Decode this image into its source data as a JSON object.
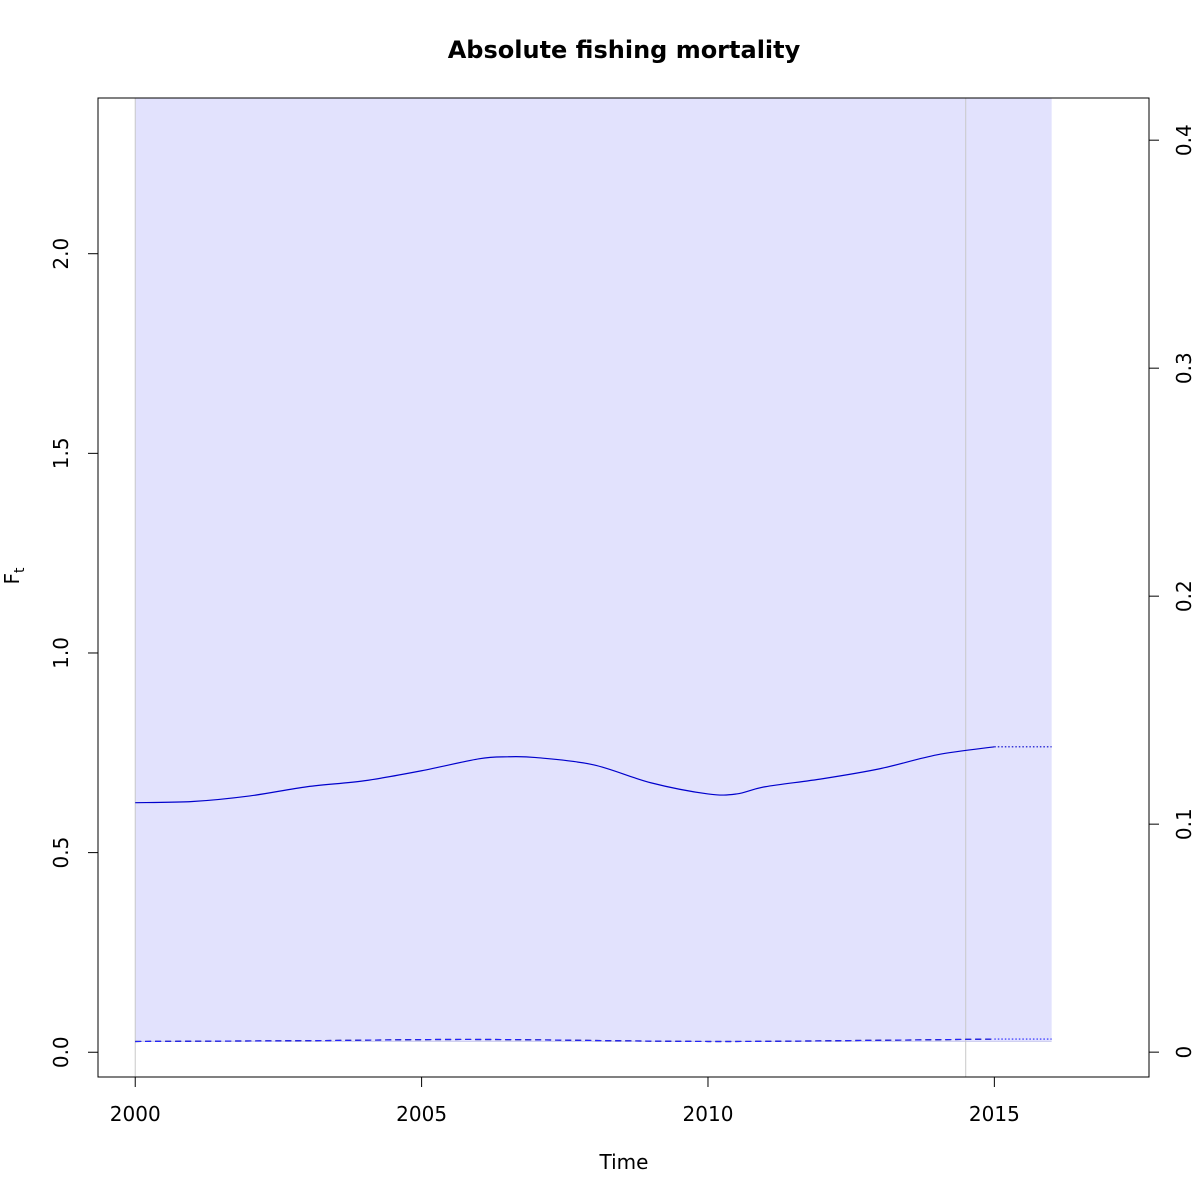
{
  "chart_data": {
    "type": "line",
    "title": "Absolute fishing mortality",
    "xlabel": "Time",
    "ylabel_main": "F",
    "ylabel_sub": "t",
    "xlim": [
      1999.35,
      2017.7
    ],
    "ylim": [
      -0.062,
      2.39
    ],
    "y2lim": [
      -0.0109,
      0.4185
    ],
    "x_ticks": [
      2000,
      2005,
      2010,
      2015
    ],
    "y_ticks": [
      0.0,
      0.5,
      1.0,
      1.5,
      2.0
    ],
    "y_tick_labels": [
      "0.0",
      "0.5",
      "1.0",
      "1.5",
      "2.0"
    ],
    "y2_ticks": [
      0,
      0.1,
      0.2,
      0.3,
      0.4
    ],
    "y2_tick_labels": [
      "0",
      "0.1",
      "0.2",
      "0.3",
      "0.4"
    ],
    "confidence_band": {
      "x": [
        2000,
        2016
      ],
      "color": "#e2e2fd"
    },
    "vertical_markers": [
      2000,
      2014.5
    ],
    "series": [
      {
        "style": "solid",
        "color": "#0000cc",
        "x": [
          2000,
          2001,
          2002,
          2003,
          2004,
          2005,
          2006,
          2006.5,
          2007,
          2008,
          2009,
          2010,
          2010.5,
          2011,
          2012,
          2013,
          2014,
          2015
        ],
        "y": [
          0.625,
          0.628,
          0.642,
          0.665,
          0.68,
          0.705,
          0.735,
          0.74,
          0.738,
          0.72,
          0.675,
          0.647,
          0.647,
          0.665,
          0.685,
          0.71,
          0.745,
          0.765
        ]
      },
      {
        "style": "dotted",
        "color": "#0000cc",
        "x": [
          2015,
          2016
        ],
        "y": [
          0.765,
          0.765
        ]
      },
      {
        "style": "dashed",
        "color": "#000000",
        "x": [
          2000,
          2003,
          2006,
          2010,
          2013,
          2015
        ],
        "y": [
          0.027,
          0.029,
          0.032,
          0.027,
          0.03,
          0.033
        ]
      },
      {
        "style": "dashed",
        "color": "#2222ff",
        "x": [
          2000,
          2003,
          2006,
          2010,
          2013,
          2015
        ],
        "y": [
          0.027,
          0.029,
          0.032,
          0.027,
          0.03,
          0.033
        ]
      },
      {
        "style": "dotted",
        "color": "#2222ff",
        "x": [
          2015,
          2016
        ],
        "y": [
          0.033,
          0.033
        ]
      }
    ]
  }
}
